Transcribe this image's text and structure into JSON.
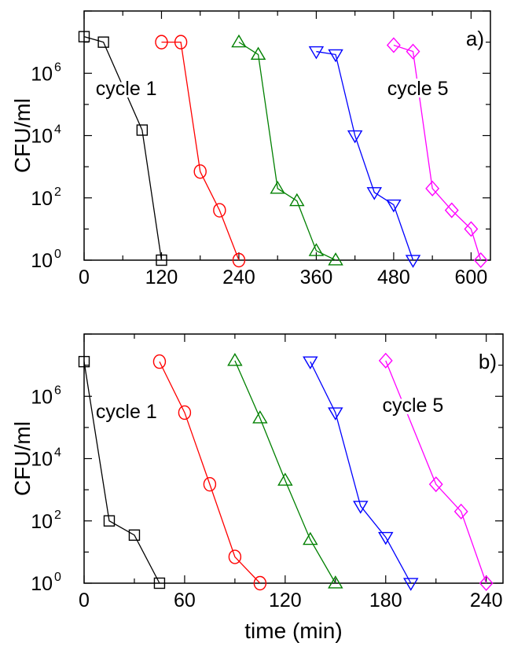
{
  "chart_data": [
    {
      "type": "line",
      "panel_label": "a)",
      "xlabel": "",
      "ylabel": "CFU/ml",
      "xlim": [
        0,
        630
      ],
      "ylim_log10": [
        0,
        8
      ],
      "y_scale": "log",
      "x_ticks": [
        0,
        120,
        240,
        360,
        480,
        600
      ],
      "x_tick_labels": [
        "0",
        "120",
        "240",
        "360",
        "480",
        "600"
      ],
      "y_ticks": [
        0,
        2,
        4,
        6
      ],
      "y_tick_labels": [
        {
          "base": "10",
          "exp": "0"
        },
        {
          "base": "10",
          "exp": "2"
        },
        {
          "base": "10",
          "exp": "4"
        },
        {
          "base": "10",
          "exp": "6"
        }
      ],
      "annotations": [
        {
          "text": "cycle 1",
          "x": 18,
          "y_log10": 5.3
        },
        {
          "text": "cycle 5",
          "x": 470,
          "y_log10": 5.3
        }
      ],
      "series": [
        {
          "marker": "square",
          "color": "#000000",
          "points": [
            [
              0,
              15000000
            ],
            [
              30,
              10000000
            ],
            [
              90,
              15000
            ],
            [
              120,
              1
            ]
          ]
        },
        {
          "marker": "circle",
          "color": "#ff0000",
          "points": [
            [
              120,
              10000000
            ],
            [
              150,
              10000000
            ],
            [
              180,
              700
            ],
            [
              210,
              40
            ],
            [
              240,
              1
            ]
          ]
        },
        {
          "marker": "triangle-up",
          "color": "#008000",
          "points": [
            [
              240,
              10000000
            ],
            [
              270,
              4000000
            ],
            [
              300,
              200
            ],
            [
              330,
              80
            ],
            [
              360,
              2
            ],
            [
              390,
              1
            ]
          ]
        },
        {
          "marker": "triangle-down",
          "color": "#0000ff",
          "points": [
            [
              360,
              5000000
            ],
            [
              390,
              4000000
            ],
            [
              420,
              10000
            ],
            [
              450,
              150
            ],
            [
              480,
              60
            ],
            [
              510,
              1
            ]
          ]
        },
        {
          "marker": "diamond",
          "color": "#ff00ff",
          "points": [
            [
              480,
              8000000
            ],
            [
              510,
              5000000
            ],
            [
              540,
              200
            ],
            [
              570,
              40
            ],
            [
              600,
              10
            ],
            [
              615,
              1
            ]
          ]
        }
      ]
    },
    {
      "type": "line",
      "panel_label": "b)",
      "xlabel": "time (min)",
      "ylabel": "CFU/ml",
      "xlim": [
        0,
        250
      ],
      "ylim_log10": [
        0,
        8
      ],
      "y_scale": "log",
      "x_ticks": [
        0,
        60,
        120,
        180,
        240
      ],
      "x_tick_labels": [
        "0",
        "60",
        "120",
        "180",
        "240"
      ],
      "y_ticks": [
        0,
        2,
        4,
        6
      ],
      "y_tick_labels": [
        {
          "base": "10",
          "exp": "0"
        },
        {
          "base": "10",
          "exp": "2"
        },
        {
          "base": "10",
          "exp": "4"
        },
        {
          "base": "10",
          "exp": "6"
        }
      ],
      "annotations": [
        {
          "text": "cycle 1",
          "x": 7,
          "y_log10": 5.3
        },
        {
          "text": "cycle 5",
          "x": 178,
          "y_log10": 5.5
        }
      ],
      "series": [
        {
          "marker": "square",
          "color": "#000000",
          "points": [
            [
              0,
              13000000
            ],
            [
              15,
              100
            ],
            [
              30,
              35
            ],
            [
              45,
              1
            ]
          ]
        },
        {
          "marker": "circle",
          "color": "#ff0000",
          "points": [
            [
              45,
              13000000
            ],
            [
              60,
              300000
            ],
            [
              75,
              1500
            ],
            [
              90,
              7
            ],
            [
              105,
              1
            ]
          ]
        },
        {
          "marker": "triangle-up",
          "color": "#008000",
          "points": [
            [
              90,
              14000000
            ],
            [
              105,
              200000
            ],
            [
              120,
              2000
            ],
            [
              135,
              25
            ],
            [
              150,
              1
            ]
          ]
        },
        {
          "marker": "triangle-down",
          "color": "#0000ff",
          "points": [
            [
              135,
              13000000
            ],
            [
              150,
              300000
            ],
            [
              165,
              300
            ],
            [
              180,
              30
            ],
            [
              195,
              1
            ]
          ]
        },
        {
          "marker": "diamond",
          "color": "#ff00ff",
          "points": [
            [
              180,
              14000000
            ],
            [
              210,
              1500
            ],
            [
              225,
              200
            ],
            [
              240,
              1
            ]
          ]
        }
      ]
    }
  ]
}
